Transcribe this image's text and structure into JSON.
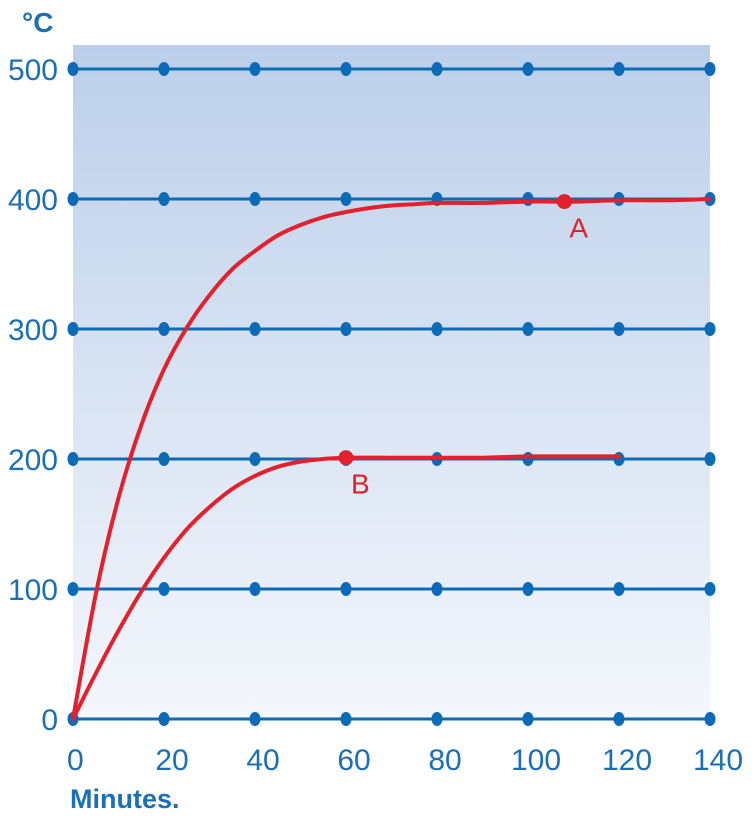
{
  "chart_data": {
    "type": "line",
    "ylabel": "°C",
    "xlabel": "Minutes.",
    "xlim": [
      0,
      140
    ],
    "ylim": [
      0,
      500
    ],
    "x_ticks": [
      0,
      20,
      40,
      60,
      80,
      100,
      120,
      140
    ],
    "y_ticks": [
      0,
      100,
      200,
      300,
      400,
      500
    ],
    "grid": "horizontal lines with dot markers at each x tick",
    "background": {
      "top": "#bccfea",
      "bottom": "#f4f7fc"
    },
    "colors": {
      "grid": "#0d6bb5",
      "series": "#e3202b",
      "text": "#1a6fb5"
    },
    "series": [
      {
        "x": [
          0,
          5,
          10,
          15,
          20,
          25,
          30,
          35,
          40,
          45,
          50,
          55,
          60,
          65,
          70,
          75,
          80,
          90,
          100,
          110,
          120,
          130,
          140
        ],
        "values": [
          0,
          96,
          170,
          226,
          269,
          301,
          326,
          346,
          360,
          372,
          380,
          386,
          390,
          393,
          395,
          396,
          397,
          397,
          398,
          398,
          399,
          399,
          400
        ]
      },
      {
        "x": [
          0,
          5,
          10,
          15,
          20,
          25,
          30,
          35,
          40,
          45,
          50,
          55,
          60,
          70,
          80,
          90,
          100,
          110,
          120
        ],
        "values": [
          0,
          35,
          68,
          98,
          124,
          146,
          163,
          177,
          187,
          194,
          198,
          200,
          201,
          201,
          201,
          201,
          202,
          202,
          202
        ]
      }
    ],
    "markers": [
      {
        "label": "A",
        "x": 108,
        "y": 398
      },
      {
        "label": "B",
        "x": 60,
        "y": 200
      }
    ]
  }
}
